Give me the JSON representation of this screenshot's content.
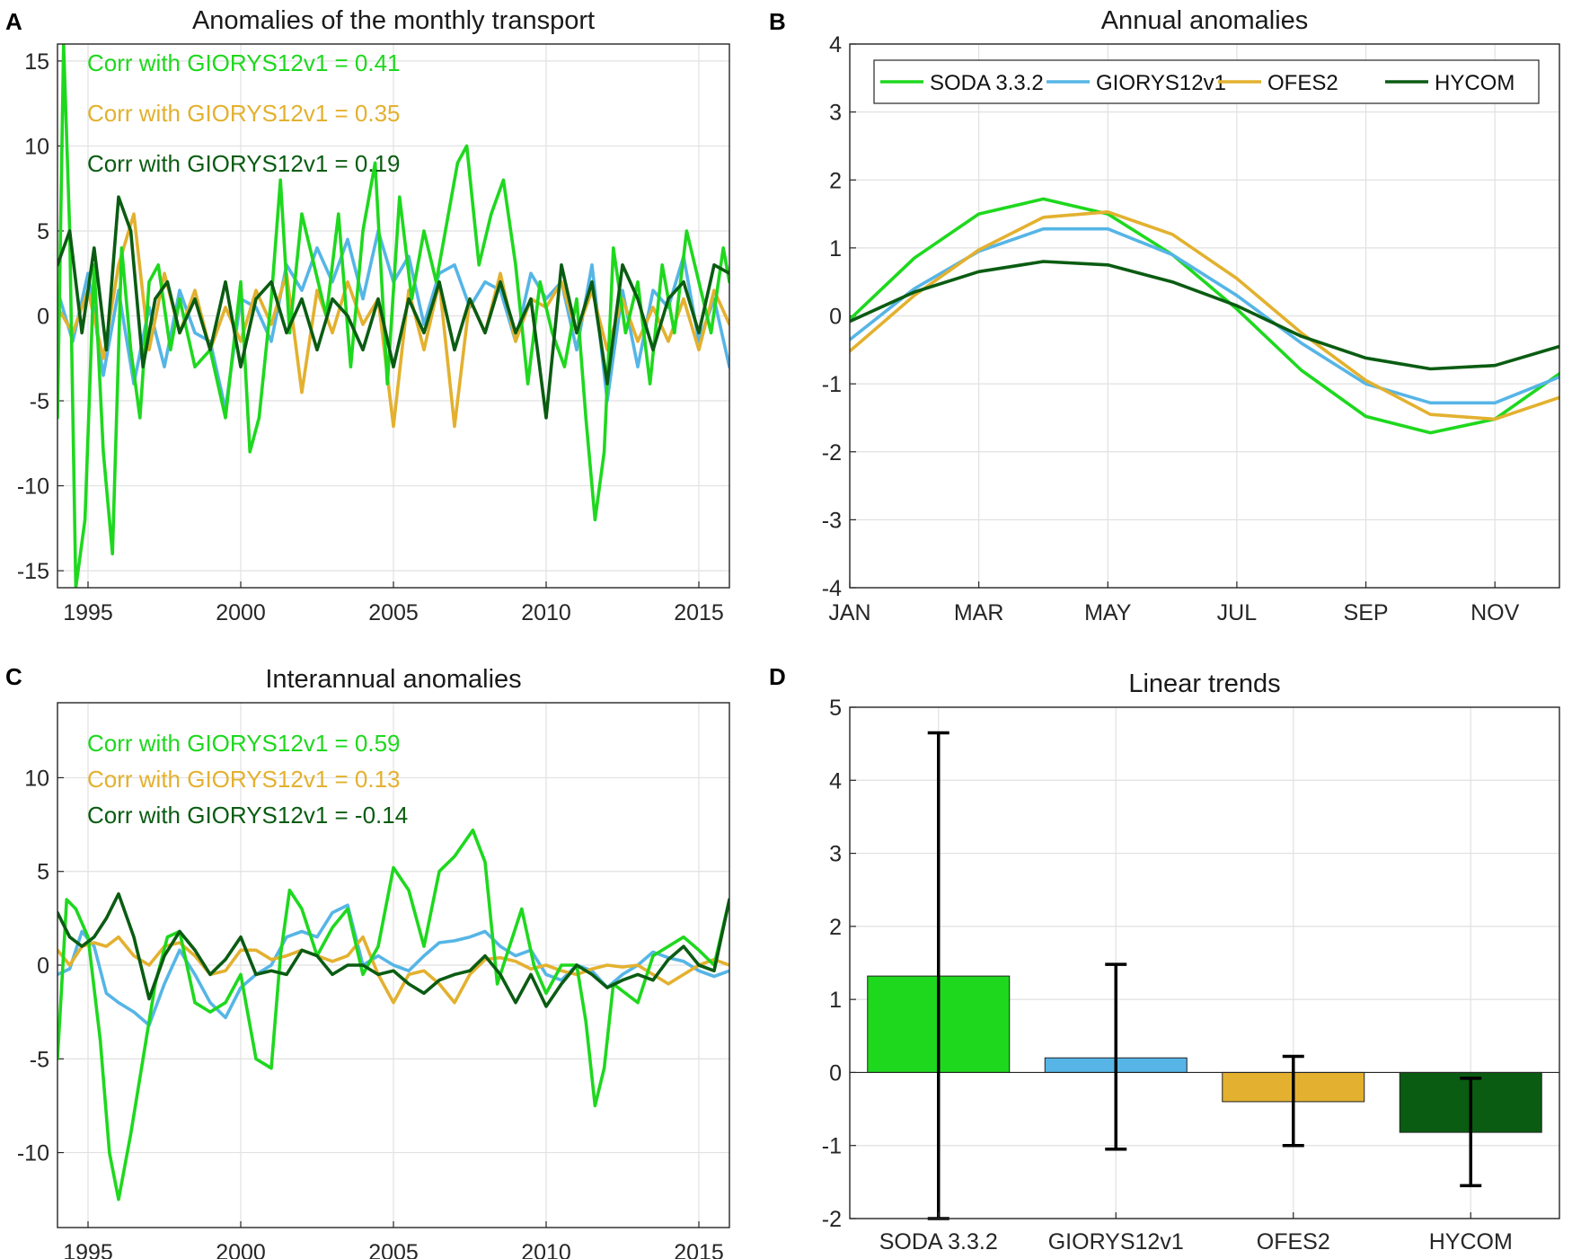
{
  "colors": {
    "soda": "#1ed81e",
    "glorys": "#56b5e6",
    "ofes": "#e3b12f",
    "hycom": "#0a5c12"
  },
  "panel_labels": [
    "A",
    "B",
    "C",
    "D"
  ],
  "chart_data": [
    {
      "id": "A",
      "type": "line",
      "title": "Anomalies of the monthly transport",
      "xlabel": "",
      "ylabel": "",
      "xlim": [
        1994,
        2016
      ],
      "ylim": [
        -16,
        16
      ],
      "xticks": [
        1995,
        2000,
        2005,
        2010,
        2015
      ],
      "yticks": [
        -15,
        -10,
        -5,
        0,
        5,
        10,
        15
      ],
      "grid": true,
      "annotations": [
        {
          "text": "Corr with GIORYS12v1 = 0.41",
          "series": "soda"
        },
        {
          "text": "Corr with GIORYS12v1 = 0.35",
          "series": "ofes"
        },
        {
          "text": "Corr with GIORYS12v1 = 0.19",
          "series": "hycom"
        }
      ],
      "series": [
        {
          "name": "GIORYS12v1",
          "key": "glorys",
          "x": [
            1994,
            1994.5,
            1995,
            1995.5,
            1996,
            1996.5,
            1997,
            1997.5,
            1998,
            1998.5,
            1999,
            1999.5,
            2000,
            2000.5,
            2001,
            2001.5,
            2002,
            2002.5,
            2003,
            2003.5,
            2004,
            2004.5,
            2005,
            2005.5,
            2006,
            2006.5,
            2007,
            2007.5,
            2008,
            2008.5,
            2009,
            2009.5,
            2010,
            2010.5,
            2011,
            2011.5,
            2012,
            2012.5,
            2013,
            2013.5,
            2014,
            2014.5,
            2015,
            2015.5,
            2016
          ],
          "y": [
            1.5,
            -1.5,
            2.5,
            -3.5,
            1.5,
            -4,
            0.5,
            -3,
            1.5,
            -1,
            -1.5,
            -5.5,
            1,
            0.5,
            -1.5,
            3,
            1.5,
            4,
            2,
            4.5,
            1,
            5,
            2,
            3.5,
            -0.5,
            2.5,
            3,
            0.5,
            2,
            1.5,
            -1.5,
            2.5,
            1,
            2,
            -2,
            3,
            -5,
            1.5,
            -3,
            1.5,
            0.5,
            3.5,
            -1.5,
            1,
            -3
          ]
        },
        {
          "name": "OFES2",
          "key": "ofes",
          "x": [
            1994,
            1994.5,
            1995,
            1995.5,
            1996,
            1996.5,
            1997,
            1997.5,
            1998,
            1998.5,
            1999,
            1999.5,
            2000,
            2000.5,
            2001,
            2001.5,
            2002,
            2002.5,
            2003,
            2003.5,
            2004,
            2004.5,
            2005,
            2005.5,
            2006,
            2006.5,
            2007,
            2007.5,
            2008,
            2008.5,
            2009,
            2009.5,
            2010,
            2010.5,
            2011,
            2011.5,
            2012,
            2012.5,
            2013,
            2013.5,
            2014,
            2014.5,
            2015,
            2015.5,
            2016
          ],
          "y": [
            0.5,
            -1,
            1.5,
            -2.5,
            3,
            6,
            -2,
            2.5,
            -1,
            1.5,
            -2,
            0.5,
            -1.5,
            1.5,
            -0.5,
            2.5,
            -4.5,
            1.5,
            -1,
            2,
            -0.5,
            1,
            -6.5,
            1.5,
            -2,
            2,
            -6.5,
            1,
            -1,
            2.5,
            -1.5,
            1,
            0.5,
            2,
            -1,
            1.5,
            -2,
            1,
            -1.5,
            0.5,
            -1.5,
            1,
            -2,
            1.5,
            -0.5
          ]
        },
        {
          "name": "SODA 3.3.2",
          "key": "soda",
          "x": [
            1994,
            1994.2,
            1994.4,
            1994.6,
            1994.9,
            1995.2,
            1995.5,
            1995.8,
            1996.1,
            1996.4,
            1996.7,
            1997,
            1997.3,
            1997.7,
            1998,
            1998.5,
            1999,
            1999.5,
            2000,
            2000.3,
            2000.6,
            2001,
            2001.3,
            2001.6,
            2002,
            2002.4,
            2002.8,
            2003.2,
            2003.6,
            2004,
            2004.4,
            2004.8,
            2005.2,
            2005.6,
            2006,
            2006.4,
            2006.8,
            2007.1,
            2007.4,
            2007.8,
            2008.2,
            2008.6,
            2009,
            2009.4,
            2009.8,
            2010.2,
            2010.6,
            2011,
            2011.3,
            2011.6,
            2011.9,
            2012.2,
            2012.6,
            2013,
            2013.4,
            2013.8,
            2014.2,
            2014.6,
            2015,
            2015.4,
            2015.8,
            2016
          ],
          "y": [
            -6,
            16,
            5,
            -16,
            -12,
            3,
            -8,
            -14,
            4,
            -2,
            -6,
            2,
            3,
            -2,
            1,
            -3,
            -2,
            -6,
            2,
            -8,
            -6,
            1,
            8,
            -1,
            6,
            3,
            0,
            6,
            -3,
            5,
            9,
            -4,
            7,
            1,
            5,
            2,
            6,
            9,
            10,
            3,
            6,
            8,
            3,
            -4,
            2,
            -1,
            -3,
            1,
            -6,
            -12,
            -8,
            4,
            -1,
            2,
            -4,
            3,
            -1,
            5,
            2,
            -1,
            4,
            2
          ]
        },
        {
          "name": "HYCOM",
          "key": "hycom",
          "x": [
            1994,
            1994.4,
            1994.8,
            1995.2,
            1995.6,
            1996,
            1996.4,
            1996.8,
            1997.2,
            1997.6,
            1998,
            1998.5,
            1999,
            1999.5,
            2000,
            2000.5,
            2001,
            2001.5,
            2002,
            2002.5,
            2003,
            2003.5,
            2004,
            2004.5,
            2005,
            2005.5,
            2006,
            2006.5,
            2007,
            2007.5,
            2008,
            2008.5,
            2009,
            2009.5,
            2010,
            2010.5,
            2011,
            2011.5,
            2012,
            2012.5,
            2013,
            2013.5,
            2014,
            2014.5,
            2015,
            2015.5,
            2016
          ],
          "y": [
            3,
            5,
            -1,
            4,
            -2,
            7,
            5,
            -3,
            1,
            2,
            -1,
            1,
            -2,
            2,
            -3,
            1,
            2,
            -1,
            1,
            -2,
            1,
            0,
            -2,
            1,
            -3,
            1,
            -1,
            2,
            -2,
            1,
            -1,
            2,
            -1,
            1,
            -6,
            3,
            -1,
            2,
            -4,
            3,
            1,
            -2,
            1,
            2,
            -1,
            3,
            2.5
          ]
        }
      ]
    },
    {
      "id": "B",
      "type": "line",
      "title": "Annual anomalies",
      "xlabel": "",
      "ylabel": "",
      "xlim": [
        1,
        12
      ],
      "ylim": [
        -4,
        4
      ],
      "xticks": [
        1,
        3,
        5,
        7,
        9,
        11
      ],
      "xticklabels": [
        "JAN",
        "MAR",
        "MAY",
        "JUL",
        "SEP",
        "NOV"
      ],
      "yticks": [
        -4,
        -3,
        -2,
        -1,
        0,
        1,
        2,
        3,
        4
      ],
      "grid": true,
      "legend": {
        "location": "top",
        "entries": [
          "SODA 3.3.2",
          "GIORYS12v1",
          "OFES2",
          "HYCOM"
        ]
      },
      "categories": [
        1,
        2,
        3,
        4,
        5,
        6,
        7,
        8,
        9,
        10,
        11,
        12
      ],
      "series": [
        {
          "name": "SODA 3.3.2",
          "key": "soda",
          "values": [
            -0.05,
            0.85,
            1.5,
            1.72,
            1.5,
            0.9,
            0.1,
            -0.8,
            -1.48,
            -1.72,
            -1.52,
            -0.85
          ]
        },
        {
          "name": "GIORYS12v1",
          "key": "glorys",
          "values": [
            -0.35,
            0.4,
            0.95,
            1.28,
            1.28,
            0.9,
            0.3,
            -0.4,
            -1.0,
            -1.28,
            -1.28,
            -0.9
          ]
        },
        {
          "name": "OFES2",
          "key": "ofes",
          "values": [
            -0.52,
            0.3,
            0.97,
            1.45,
            1.53,
            1.2,
            0.55,
            -0.25,
            -0.95,
            -1.45,
            -1.52,
            -1.2
          ]
        },
        {
          "name": "HYCOM",
          "key": "hycom",
          "values": [
            -0.08,
            0.35,
            0.65,
            0.8,
            0.75,
            0.5,
            0.15,
            -0.3,
            -0.62,
            -0.78,
            -0.73,
            -0.45
          ]
        }
      ]
    },
    {
      "id": "C",
      "type": "line",
      "title": "Interannual anomalies",
      "xlabel": "",
      "ylabel": "",
      "xlim": [
        1994,
        2016
      ],
      "ylim": [
        -14,
        14
      ],
      "xticks": [
        1995,
        2000,
        2005,
        2010,
        2015
      ],
      "yticks": [
        -10,
        -5,
        0,
        5,
        10
      ],
      "grid": true,
      "annotations": [
        {
          "text": "Corr with GIORYS12v1 = 0.59",
          "series": "soda"
        },
        {
          "text": "Corr with GIORYS12v1 = 0.13",
          "series": "ofes"
        },
        {
          "text": "Corr with GIORYS12v1 = -0.14",
          "series": "hycom"
        }
      ],
      "series": [
        {
          "name": "GIORYS12v1",
          "key": "glorys",
          "x": [
            1994,
            1994.4,
            1994.8,
            1995.2,
            1995.6,
            1996,
            1996.5,
            1997,
            1997.5,
            1998,
            1998.5,
            1999,
            1999.5,
            2000,
            2000.5,
            2001,
            2001.5,
            2002,
            2002.5,
            2003,
            2003.5,
            2004,
            2004.5,
            2005,
            2005.5,
            2006,
            2006.5,
            2007,
            2007.5,
            2008,
            2008.5,
            2009,
            2009.5,
            2010,
            2010.5,
            2011,
            2011.5,
            2012,
            2012.5,
            2013,
            2013.5,
            2014,
            2014.5,
            2015,
            2015.5,
            2016
          ],
          "y": [
            -0.5,
            -0.2,
            1.8,
            1.0,
            -1.5,
            -2.0,
            -2.5,
            -3.2,
            -1.0,
            0.8,
            -0.5,
            -2.0,
            -2.8,
            -1.2,
            -0.5,
            0.0,
            1.5,
            1.8,
            1.5,
            2.8,
            3.2,
            0.0,
            0.5,
            0.0,
            -0.3,
            0.5,
            1.2,
            1.3,
            1.5,
            1.8,
            1.0,
            0.5,
            0.8,
            -0.5,
            -0.8,
            0.0,
            -0.3,
            -1.2,
            -0.5,
            0.0,
            0.7,
            0.4,
            0.2,
            -0.3,
            -0.6,
            -0.3
          ]
        },
        {
          "name": "OFES2",
          "key": "ofes",
          "x": [
            1994,
            1994.4,
            1994.8,
            1995.2,
            1995.6,
            1996,
            1996.5,
            1997,
            1997.5,
            1998,
            1998.5,
            1999,
            1999.5,
            2000,
            2000.5,
            2001,
            2001.5,
            2002,
            2002.5,
            2003,
            2003.5,
            2004,
            2004.5,
            2005,
            2005.5,
            2006,
            2006.5,
            2007,
            2007.5,
            2008,
            2008.5,
            2009,
            2009.5,
            2010,
            2010.5,
            2011,
            2011.5,
            2012,
            2012.5,
            2013,
            2013.5,
            2014,
            2014.5,
            2015,
            2015.5,
            2016
          ],
          "y": [
            0.8,
            0.0,
            1.0,
            1.2,
            1.0,
            1.5,
            0.5,
            0.0,
            1.0,
            1.2,
            0.5,
            -0.5,
            -0.3,
            0.8,
            0.8,
            0.3,
            0.5,
            0.8,
            0.5,
            0.2,
            0.5,
            1.5,
            -0.5,
            -2.0,
            -0.5,
            -0.3,
            -1.0,
            -2.0,
            -0.5,
            0.3,
            0.4,
            0.2,
            -0.2,
            0.0,
            -0.3,
            -0.5,
            -0.2,
            0.0,
            -0.1,
            0.0,
            -0.5,
            -1.0,
            -0.5,
            0.0,
            0.3,
            0.0
          ]
        },
        {
          "name": "SODA 3.3.2",
          "key": "soda",
          "x": [
            1994,
            1994.3,
            1994.6,
            1995,
            1995.4,
            1995.7,
            1996,
            1996.4,
            1996.8,
            1997.2,
            1997.6,
            1998,
            1998.5,
            1999,
            1999.5,
            2000,
            2000.5,
            2001,
            2001.3,
            2001.6,
            2002,
            2002.5,
            2003,
            2003.5,
            2004,
            2004.5,
            2005,
            2005.5,
            2006,
            2006.5,
            2007,
            2007.3,
            2007.6,
            2008,
            2008.4,
            2008.8,
            2009.2,
            2009.6,
            2010,
            2010.5,
            2011,
            2011.3,
            2011.6,
            2011.9,
            2012.2,
            2012.6,
            2013,
            2013.5,
            2014,
            2014.5,
            2015,
            2015.5,
            2016
          ],
          "y": [
            -5,
            3.5,
            3.0,
            1.5,
            -4.0,
            -10.0,
            -12.5,
            -9.0,
            -5.0,
            -1.0,
            1.5,
            1.8,
            -2.0,
            -2.5,
            -2.0,
            -0.5,
            -5.0,
            -5.5,
            0.5,
            4.0,
            3.0,
            0.5,
            2.0,
            3.0,
            -0.5,
            1.0,
            5.2,
            4.0,
            1.0,
            5.0,
            5.8,
            6.5,
            7.2,
            5.5,
            -1.0,
            1.0,
            3.0,
            0.0,
            -1.5,
            0.0,
            0.0,
            -3.0,
            -7.5,
            -5.5,
            -1.0,
            -1.5,
            -2.0,
            0.5,
            1.0,
            1.5,
            0.8,
            0.0,
            3.5
          ]
        },
        {
          "name": "HYCOM",
          "key": "hycom",
          "x": [
            1994,
            1994.4,
            1994.8,
            1995.2,
            1995.6,
            1996,
            1996.5,
            1997,
            1997.5,
            1998,
            1998.5,
            1999,
            1999.5,
            2000,
            2000.5,
            2001,
            2001.5,
            2002,
            2002.5,
            2003,
            2003.5,
            2004,
            2004.5,
            2005,
            2005.5,
            2006,
            2006.5,
            2007,
            2007.5,
            2008,
            2008.5,
            2009,
            2009.5,
            2010,
            2010.5,
            2011,
            2011.5,
            2012,
            2012.5,
            2013,
            2013.5,
            2014,
            2014.5,
            2015,
            2015.5,
            2016
          ],
          "y": [
            2.8,
            1.5,
            1.0,
            1.5,
            2.5,
            3.8,
            1.5,
            -1.8,
            0.5,
            1.8,
            0.8,
            -0.5,
            0.3,
            1.5,
            -0.5,
            -0.3,
            -0.5,
            0.8,
            0.5,
            -0.5,
            0.0,
            0.0,
            -0.5,
            -0.3,
            -1.0,
            -1.5,
            -0.8,
            -0.5,
            -0.3,
            0.5,
            -0.5,
            -2.0,
            -0.5,
            -2.2,
            -1.0,
            0.0,
            -0.5,
            -1.2,
            -0.8,
            -0.5,
            -0.8,
            0.3,
            1.0,
            0.0,
            -0.3,
            3.5
          ]
        }
      ]
    },
    {
      "id": "D",
      "type": "bar",
      "title": "Linear trends",
      "xlabel": "",
      "ylabel": "",
      "categories": [
        "SODA 3.3.2",
        "GIORYS12v1",
        "OFES2",
        "HYCOM"
      ],
      "keys": [
        "soda",
        "glorys",
        "ofes",
        "hycom"
      ],
      "values": [
        1.32,
        0.2,
        -0.4,
        -0.82
      ],
      "error_low": [
        -2.0,
        -1.05,
        -1.0,
        -1.55
      ],
      "error_high": [
        4.65,
        1.48,
        0.22,
        -0.08
      ],
      "ylim": [
        -2,
        5
      ],
      "yticks": [
        -2,
        -1,
        0,
        1,
        2,
        3,
        4,
        5
      ],
      "grid": true
    }
  ]
}
